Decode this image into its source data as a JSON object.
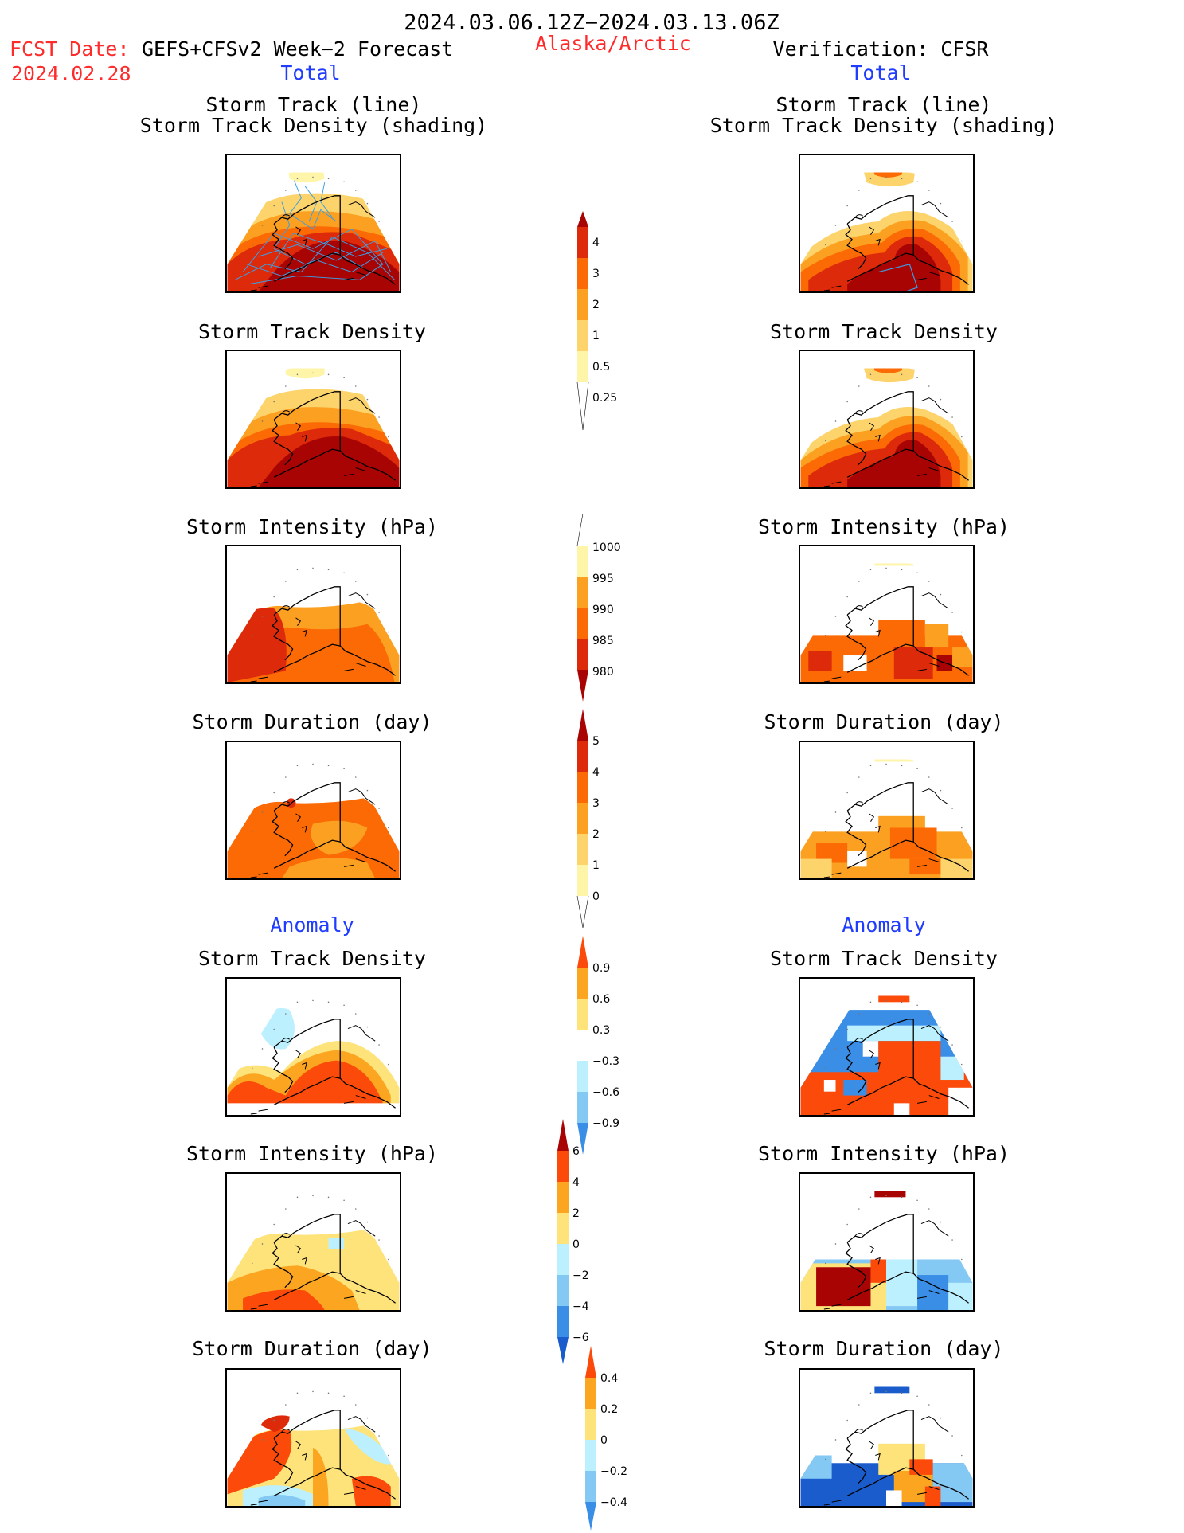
{
  "header": {
    "period": "2024.03.06.12Z−2024.03.13.06Z",
    "fcst_label": "FCST Date:",
    "fcst_model": "GEFS+CFSv2 Week−2 Forecast",
    "fcst_date": "2024.02.28",
    "region": "Alaska/Arctic",
    "verification": "Verification: CFSR"
  },
  "sections": {
    "total": "Total",
    "anomaly": "Anomaly"
  },
  "panel_titles": {
    "track": [
      "Storm Track (line)",
      "Storm Track Density (shading)"
    ],
    "density": "Storm Track Density",
    "intensity": "Storm Intensity (hPa)",
    "duration": "Storm Duration (day)"
  },
  "colors": {
    "red_text": "#ff2a2a",
    "blue_text": "#1f3cff",
    "track_line": "#3a9fe6",
    "coast": "#000000",
    "warm": [
      "#fff5a8",
      "#fdd36b",
      "#fba020",
      "#fb6a05",
      "#dd2a0a",
      "#a90404"
    ],
    "anom_warm": [
      "#fde37a",
      "#fba520",
      "#fb4a0a"
    ],
    "anom_cool": [
      "#bdf0ff",
      "#84c8f4",
      "#3a8ee6",
      "#1a5ccc"
    ]
  },
  "colorbars": [
    {
      "name": "track-density-total",
      "labels": [
        "0.25",
        "0.5",
        "1",
        "2",
        "3",
        "4"
      ]
    },
    {
      "name": "intensity-total",
      "labels": [
        "1000",
        "995",
        "990",
        "985",
        "980"
      ]
    },
    {
      "name": "duration-total",
      "labels": [
        "0",
        "1",
        "2",
        "3",
        "4",
        "5"
      ]
    },
    {
      "name": "track-density-anomaly",
      "labels": [
        "0.9",
        "0.6",
        "0.3",
        "−0.3",
        "−0.6",
        "−0.9"
      ]
    },
    {
      "name": "intensity-anomaly",
      "labels": [
        "6",
        "4",
        "2",
        "0",
        "−2",
        "−4",
        "−6"
      ]
    },
    {
      "name": "duration-anomaly",
      "labels": [
        "0.4",
        "0.2",
        "0",
        "−0.2",
        "−0.4"
      ]
    }
  ]
}
